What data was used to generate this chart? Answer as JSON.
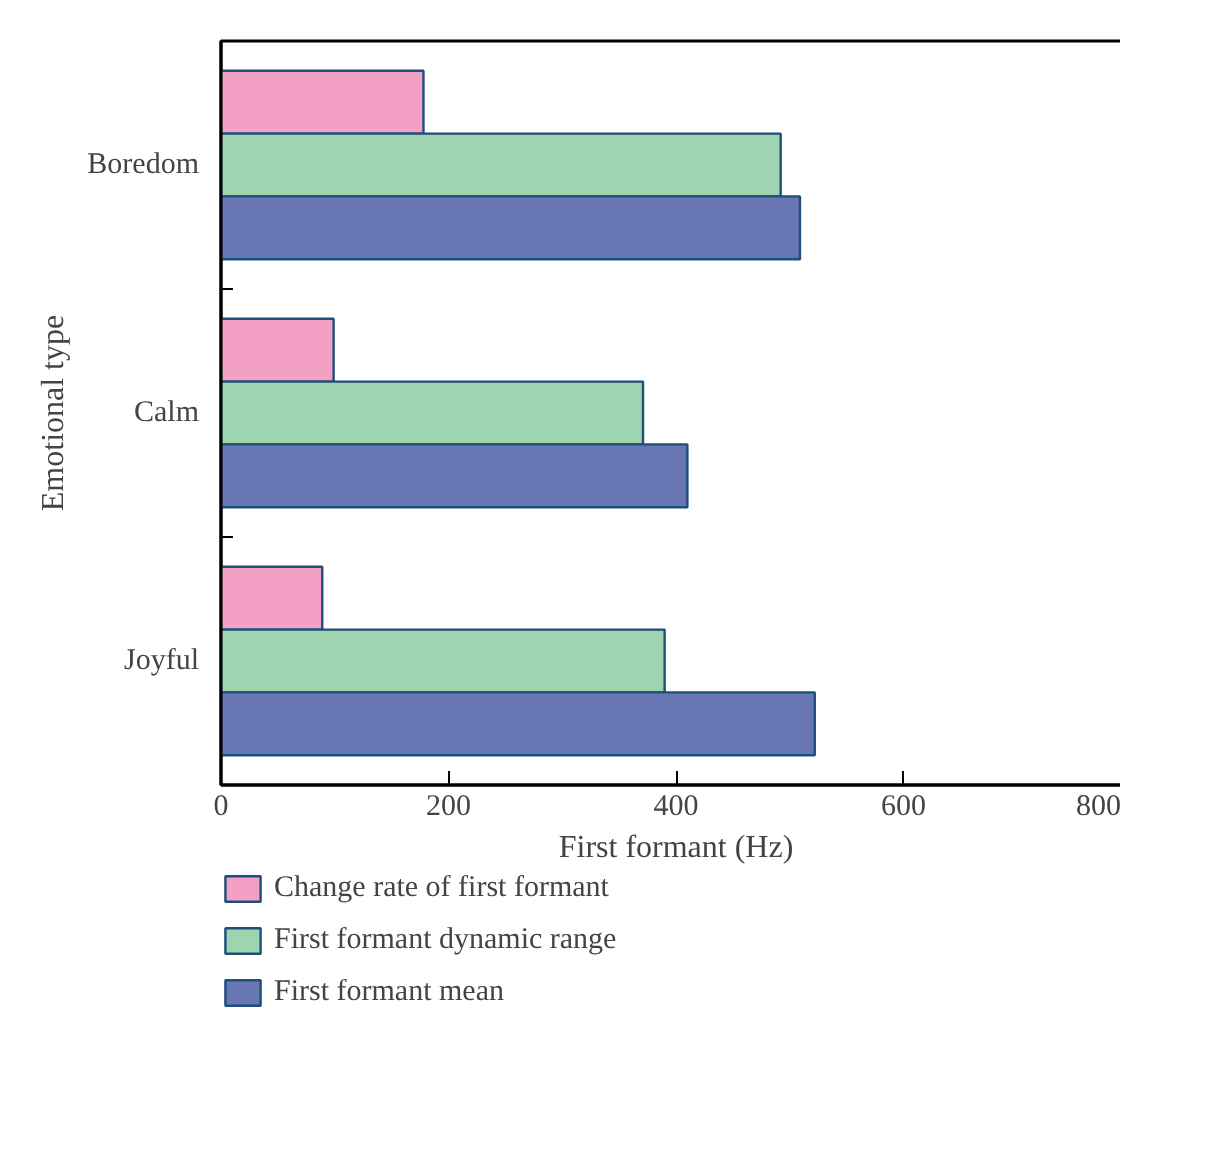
{
  "chart_data": {
    "type": "bar",
    "orientation": "horizontal",
    "xlabel": "First formant (Hz)",
    "ylabel": "Emotional type",
    "categories": [
      "Boredom",
      "Calm",
      "Joyful"
    ],
    "series": [
      {
        "name": "Change rate of first formant",
        "color": "#f4a0c4",
        "values": [
          178,
          99,
          89
        ]
      },
      {
        "name": "First formant dynamic range",
        "color": "#9ed5b0",
        "values": [
          492,
          371,
          390
        ]
      },
      {
        "name": "First formant mean",
        "color": "#6876b4",
        "values": [
          509,
          410,
          522
        ]
      }
    ],
    "xlim": [
      0,
      800
    ],
    "xticks": [
      0,
      200,
      400,
      600,
      800
    ],
    "grid": false,
    "legend": "bottom"
  }
}
